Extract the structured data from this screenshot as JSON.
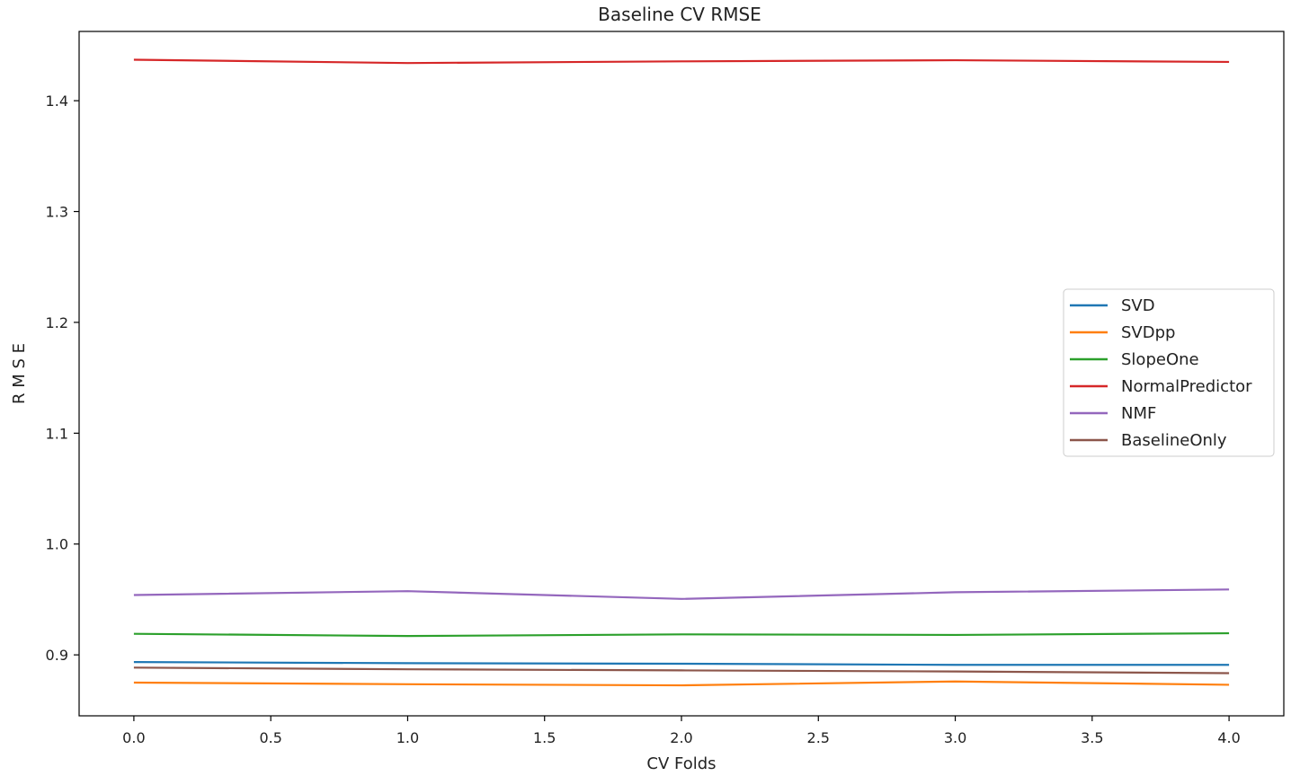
{
  "chart_data": {
    "type": "line",
    "title": "Baseline CV RMSE",
    "xlabel": "CV Folds",
    "ylabel": "R M S E",
    "x": [
      0,
      1,
      2,
      3,
      4
    ],
    "xlim": [
      -0.2,
      4.2
    ],
    "ylim": [
      0.845,
      1.4625
    ],
    "xticks": [
      0.0,
      0.5,
      1.0,
      1.5,
      2.0,
      2.5,
      3.0,
      3.5,
      4.0
    ],
    "xtick_labels": [
      "0.0",
      "0.5",
      "1.0",
      "1.5",
      "2.0",
      "2.5",
      "3.0",
      "3.5",
      "4.0"
    ],
    "yticks": [
      0.9,
      1.0,
      1.1,
      1.2,
      1.3,
      1.4
    ],
    "ytick_labels": [
      "0.9",
      "1.0",
      "1.1",
      "1.2",
      "1.3",
      "1.4"
    ],
    "grid": false,
    "legend_position": "right",
    "series": [
      {
        "name": "SVD",
        "color": "#1f77b4",
        "values": [
          0.8935,
          0.8925,
          0.892,
          0.891,
          0.891
        ]
      },
      {
        "name": "SVDpp",
        "color": "#ff7f0e",
        "values": [
          0.875,
          0.8735,
          0.8725,
          0.876,
          0.873
        ]
      },
      {
        "name": "SlopeOne",
        "color": "#2ca02c",
        "values": [
          0.919,
          0.917,
          0.9185,
          0.918,
          0.9195
        ]
      },
      {
        "name": "NormalPredictor",
        "color": "#d62728",
        "values": [
          1.437,
          1.434,
          1.4355,
          1.4365,
          1.435
        ]
      },
      {
        "name": "NMF",
        "color": "#9467bd",
        "values": [
          0.954,
          0.9575,
          0.9505,
          0.9565,
          0.959
        ]
      },
      {
        "name": "BaselineOnly",
        "color": "#8c564b",
        "values": [
          0.8885,
          0.887,
          0.886,
          0.885,
          0.8835
        ]
      }
    ]
  }
}
